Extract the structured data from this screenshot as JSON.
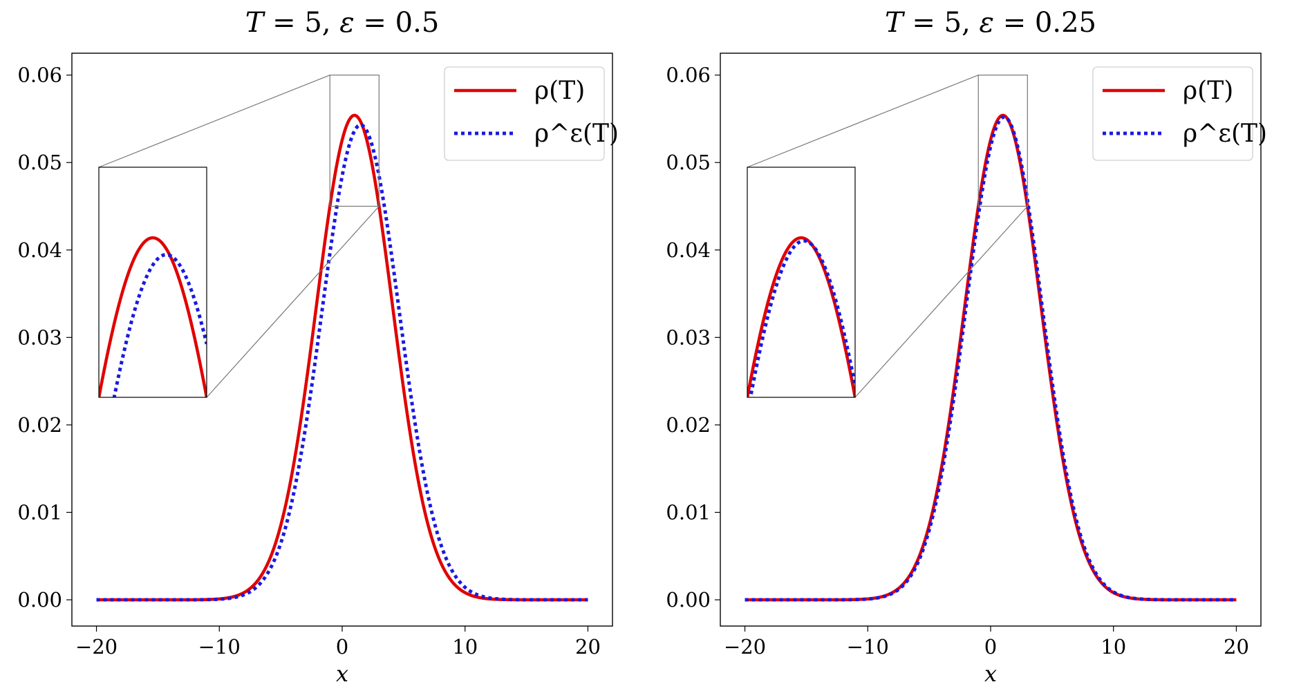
{
  "chart_data": [
    {
      "type": "line",
      "title": {
        "T_var": "T",
        "T_eq": " = 5, ",
        "eps_var": "ε",
        "eps_eq": " = 0.5"
      },
      "xlabel": "x",
      "ylabel": "",
      "xlim": [
        -22,
        22
      ],
      "ylim": [
        -0.003,
        0.0625
      ],
      "x_ticks": [
        "−20",
        "−10",
        "0",
        "10",
        "20"
      ],
      "y_ticks": [
        "0.00",
        "0.01",
        "0.02",
        "0.03",
        "0.04",
        "0.05",
        "0.06"
      ],
      "legend_position": "upper right",
      "grid": false,
      "series": [
        {
          "name": "ρ(T)",
          "color": "#e00000",
          "style": "solid",
          "mean": 1.0,
          "sigma": 3.1,
          "peak": 0.0554
        },
        {
          "name": "ρ^ε(T)",
          "color": "#1a1adf",
          "style": "dotted",
          "mean": 1.5,
          "sigma": 3.15,
          "peak": 0.0543
        }
      ],
      "inset": {
        "x_range": [
          -1,
          3
        ],
        "y_range": [
          0.045,
          0.06
        ],
        "loc": "left"
      }
    },
    {
      "type": "line",
      "title": {
        "T_var": "T",
        "T_eq": " = 5, ",
        "eps_var": "ε",
        "eps_eq": " = 0.25"
      },
      "xlabel": "x",
      "ylabel": "",
      "xlim": [
        -22,
        22
      ],
      "ylim": [
        -0.003,
        0.0625
      ],
      "x_ticks": [
        "−20",
        "−10",
        "0",
        "10",
        "20"
      ],
      "y_ticks": [
        "0.00",
        "0.01",
        "0.02",
        "0.03",
        "0.04",
        "0.05",
        "0.06"
      ],
      "legend_position": "upper right",
      "grid": false,
      "series": [
        {
          "name": "ρ(T)",
          "color": "#e00000",
          "style": "solid",
          "mean": 1.0,
          "sigma": 3.1,
          "peak": 0.0554
        },
        {
          "name": "ρ^ε(T)",
          "color": "#1a1adf",
          "style": "dotted",
          "mean": 1.1,
          "sigma": 3.1,
          "peak": 0.0552
        }
      ],
      "inset": {
        "x_range": [
          -1,
          3
        ],
        "y_range": [
          0.045,
          0.06
        ],
        "loc": "left"
      }
    }
  ]
}
